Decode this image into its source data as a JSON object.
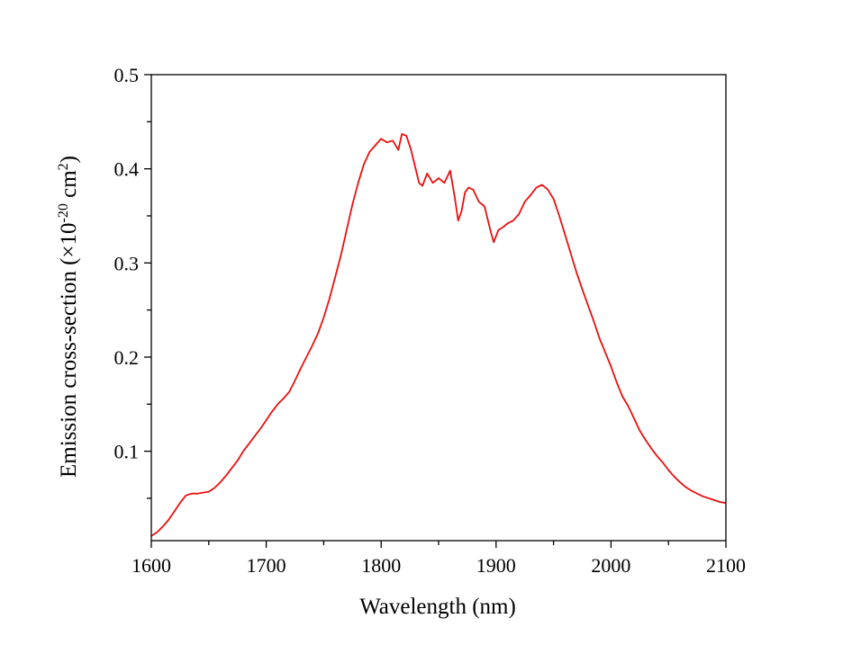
{
  "chart_data": {
    "type": "line",
    "xlabel": "Wavelength (nm)",
    "ylabel": {
      "prefix": "Emission cross-section (×10",
      "exp1": "-20",
      "mid": " cm",
      "exp2": "2",
      "suffix": ")"
    },
    "xlim": [
      1600,
      2100
    ],
    "ylim": [
      0.005,
      0.5
    ],
    "x_ticks": [
      "1600",
      "1700",
      "1800",
      "1900",
      "2000",
      "2100"
    ],
    "y_ticks": [
      "0.1",
      "0.2",
      "0.3",
      "0.4",
      "0.5"
    ],
    "grid": false,
    "line_color": "#e8100f",
    "series": [
      {
        "x": [
          1600,
          1605,
          1610,
          1615,
          1620,
          1625,
          1630,
          1635,
          1640,
          1645,
          1650,
          1655,
          1660,
          1665,
          1670,
          1675,
          1680,
          1685,
          1690,
          1695,
          1700,
          1705,
          1710,
          1715,
          1720,
          1725,
          1730,
          1735,
          1740,
          1745,
          1750,
          1755,
          1760,
          1765,
          1770,
          1775,
          1780,
          1785,
          1790,
          1795,
          1800,
          1805,
          1810,
          1815,
          1818,
          1822,
          1826,
          1830,
          1833,
          1836,
          1840,
          1845,
          1850,
          1855,
          1860,
          1864,
          1867,
          1870,
          1873,
          1876,
          1880,
          1885,
          1890,
          1895,
          1898,
          1902,
          1906,
          1910,
          1915,
          1920,
          1925,
          1930,
          1935,
          1940,
          1945,
          1950,
          1955,
          1960,
          1965,
          1970,
          1975,
          1980,
          1985,
          1990,
          1995,
          2000,
          2005,
          2010,
          2015,
          2020,
          2025,
          2030,
          2035,
          2040,
          2045,
          2050,
          2055,
          2060,
          2065,
          2070,
          2075,
          2080,
          2085,
          2090,
          2095,
          2100
        ],
        "values": [
          0.01,
          0.014,
          0.02,
          0.027,
          0.036,
          0.045,
          0.053,
          0.055,
          0.055,
          0.056,
          0.057,
          0.061,
          0.067,
          0.074,
          0.082,
          0.09,
          0.1,
          0.108,
          0.116,
          0.124,
          0.133,
          0.142,
          0.15,
          0.156,
          0.163,
          0.175,
          0.188,
          0.2,
          0.212,
          0.225,
          0.242,
          0.262,
          0.285,
          0.308,
          0.335,
          0.362,
          0.385,
          0.405,
          0.418,
          0.425,
          0.432,
          0.428,
          0.43,
          0.42,
          0.437,
          0.435,
          0.42,
          0.4,
          0.385,
          0.382,
          0.395,
          0.385,
          0.39,
          0.385,
          0.398,
          0.37,
          0.345,
          0.355,
          0.375,
          0.38,
          0.378,
          0.365,
          0.36,
          0.335,
          0.322,
          0.335,
          0.338,
          0.342,
          0.345,
          0.352,
          0.365,
          0.372,
          0.38,
          0.383,
          0.378,
          0.368,
          0.35,
          0.33,
          0.31,
          0.29,
          0.272,
          0.255,
          0.238,
          0.22,
          0.205,
          0.19,
          0.173,
          0.158,
          0.148,
          0.135,
          0.122,
          0.112,
          0.103,
          0.095,
          0.088,
          0.08,
          0.073,
          0.067,
          0.062,
          0.058,
          0.055,
          0.052,
          0.05,
          0.048,
          0.046,
          0.045
        ]
      }
    ]
  }
}
